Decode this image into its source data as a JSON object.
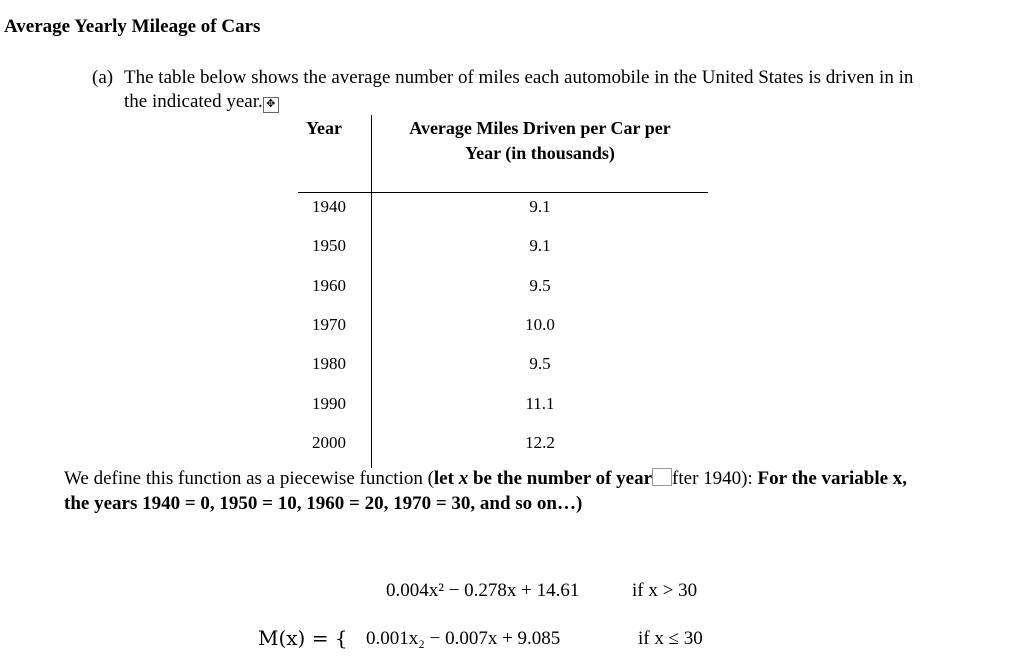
{
  "title": "Average Yearly Mileage of Cars",
  "part_a": {
    "label": "(a)",
    "text_line1": "The table below shows the average number of miles each automobile in the United States is driven in in",
    "text_line2": "the indicated year.",
    "move_icon": "table-move-handle-icon"
  },
  "table": {
    "headers": [
      "Year",
      "Average Miles Driven per Car per",
      "Year (in thousands)"
    ],
    "rows": [
      [
        "1940",
        "9.1"
      ],
      [
        "1950",
        "9.1"
      ],
      [
        "1960",
        "9.5"
      ],
      [
        "1970",
        "10.0"
      ],
      [
        "1980",
        "9.5"
      ],
      [
        "1990",
        "11.1"
      ],
      [
        "2000",
        "12.2"
      ]
    ]
  },
  "definition": {
    "normal1": "We define this function as a piecewise function (",
    "bold1": "let ",
    "var": "x",
    "bold2": " be the number of year",
    "normal2": "fter 1940)",
    "colon": ": ",
    "bold3": "For the variable x,",
    "line2": "the years 1940 = 0, 1950 = 10, 1960 = 20, 1970 = 30, and so on…)"
  },
  "function": {
    "name": "M(x) = {",
    "piece1": "0.004x² − 0.278x + 14.61",
    "cond1": "if x > 30",
    "piece2": "0.001x₂ − 0.007x + 9.085",
    "cond2": "if x ≤ 30"
  }
}
